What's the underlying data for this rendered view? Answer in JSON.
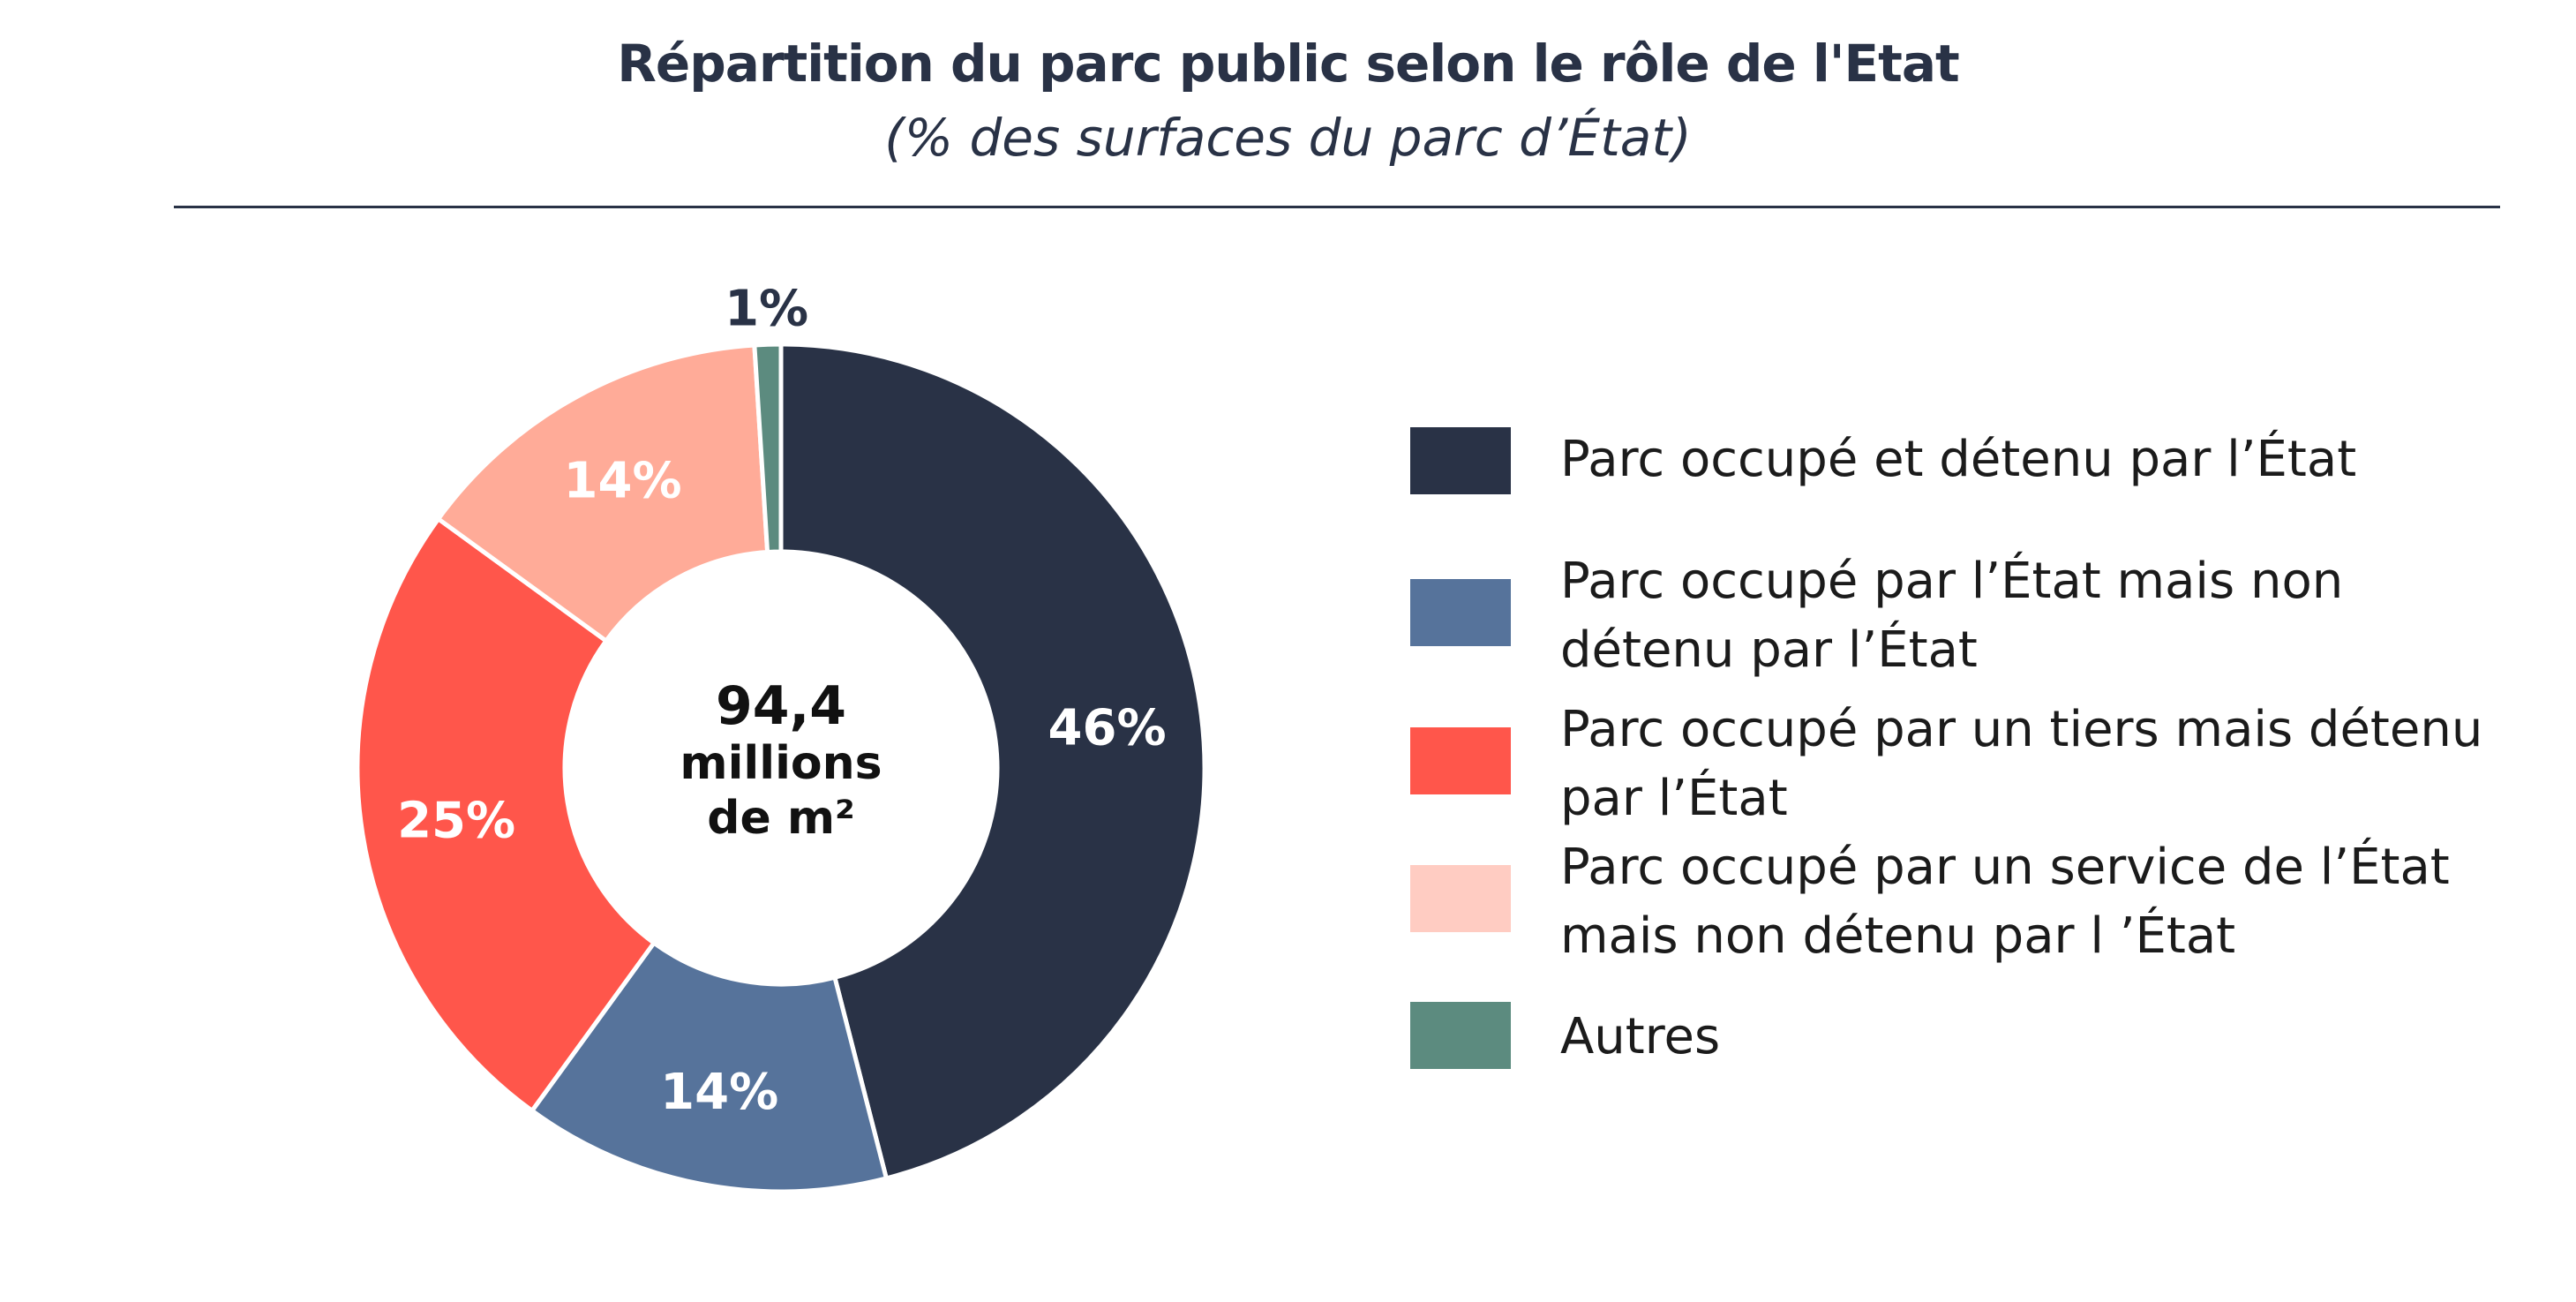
{
  "title": "Répartition du parc public selon le rôle de l'Etat",
  "subtitle": "(% des surfaces du parc d’État)",
  "center_text": [
    "94,4",
    "millions",
    "de m²"
  ],
  "colors": {
    "text_dark": "#293246",
    "rule": "#293246",
    "slice_border": "#ffffff"
  },
  "chart_data": {
    "type": "pie",
    "variant": "donut",
    "unit": "%",
    "series": [
      {
        "label": "Parc occupé et détenu par l’État",
        "value": 46,
        "data_label": "46%",
        "color": "#293246",
        "label_color": "#ffffff"
      },
      {
        "label": "Parc occupé par l’État mais non détenu par l’État",
        "value": 14,
        "data_label": "14%",
        "color": "#56739b",
        "label_color": "#ffffff"
      },
      {
        "label": "Parc occupé par un tiers mais détenu par l’État",
        "value": 25,
        "data_label": "25%",
        "color": "#ff564b",
        "label_color": "#ffffff"
      },
      {
        "label": "Parc occupé par un service de l’État mais non détenu par l ’État",
        "value": 14,
        "data_label": "14%",
        "color": "#ffab98",
        "label_color": "#ffffff"
      },
      {
        "label": "Autres",
        "value": 1,
        "data_label": "1%",
        "color": "#5c8b7f",
        "label_color": "#293246"
      }
    ],
    "legend": {
      "position": "right",
      "items": [
        {
          "lines": [
            "Parc occupé et détenu par l’État"
          ],
          "color": "#293246"
        },
        {
          "lines": [
            "Parc occupé par l’État mais non",
            "détenu par l’État"
          ],
          "color": "#56739b"
        },
        {
          "lines": [
            "Parc occupé par un tiers mais détenu",
            "par l’État"
          ],
          "color": "#ff564b"
        },
        {
          "lines": [
            "Parc occupé par un service de l’État",
            "mais non détenu par l ’État"
          ],
          "color": "#ffccc2"
        },
        {
          "lines": [
            "Autres"
          ],
          "color": "#5c8b7f"
        }
      ]
    }
  }
}
